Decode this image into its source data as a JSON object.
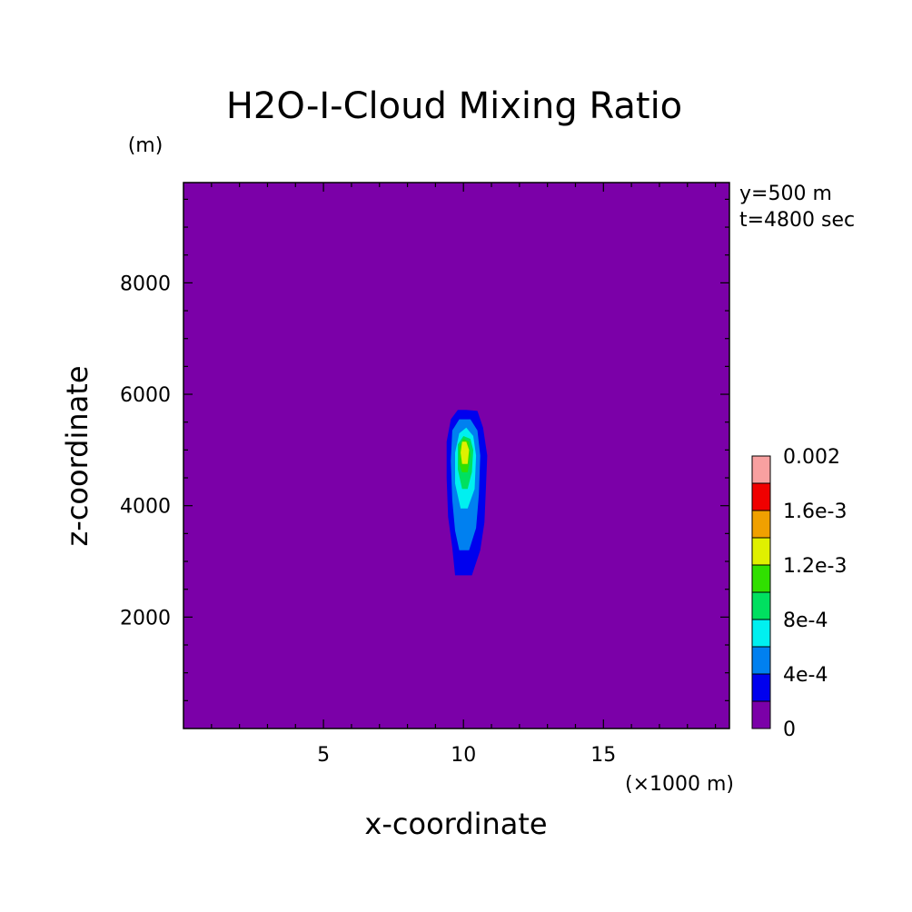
{
  "chart_data": {
    "type": "heatmap",
    "title": "H2O-I-Cloud Mixing Ratio",
    "xlabel": "x-coordinate",
    "ylabel": "z-coordinate",
    "x_unit": "(×1000 m)",
    "y_unit": "(m)",
    "annotations": [
      "y=500 m",
      "t=4800 sec"
    ],
    "xlim": [
      0,
      19.5
    ],
    "ylim": [
      0,
      9800
    ],
    "x_ticks": [
      5,
      10,
      15
    ],
    "y_ticks": [
      2000,
      4000,
      6000,
      8000
    ],
    "x_tick_labels": [
      "5",
      "10",
      "15"
    ],
    "y_tick_labels": [
      "2000",
      "4000",
      "6000",
      "8000"
    ],
    "background_color": "#7b00a8",
    "colorbar": {
      "levels": [
        0,
        0.0002,
        0.0004,
        0.0006,
        0.0008,
        0.001,
        0.0012,
        0.0014,
        0.0016,
        0.0018,
        0.002
      ],
      "colors": [
        "#7b00a8",
        "#0000ee",
        "#0080f0",
        "#00f0f0",
        "#00e060",
        "#30e000",
        "#e0f000",
        "#f0a000",
        "#f00000",
        "#f8a0a0"
      ],
      "labels": [
        {
          "value": 0,
          "text": "0"
        },
        {
          "value": 0.0004,
          "text": "4e-4"
        },
        {
          "value": 0.0008,
          "text": "8e-4"
        },
        {
          "value": 0.0012,
          "text": "1.2e-3"
        },
        {
          "value": 0.0016,
          "text": "1.6e-3"
        },
        {
          "value": 0.002,
          "text": "0.002"
        }
      ]
    },
    "contours": [
      {
        "level": 0.0002,
        "color": "#0000ee",
        "points": [
          [
            9.7,
            2750
          ],
          [
            10.3,
            2750
          ],
          [
            10.6,
            3200
          ],
          [
            10.75,
            3700
          ],
          [
            10.8,
            4300
          ],
          [
            10.85,
            4900
          ],
          [
            10.7,
            5400
          ],
          [
            10.5,
            5700
          ],
          [
            10.1,
            5720
          ],
          [
            9.8,
            5720
          ],
          [
            9.55,
            5550
          ],
          [
            9.4,
            5150
          ],
          [
            9.4,
            4500
          ],
          [
            9.45,
            3800
          ],
          [
            9.6,
            3250
          ]
        ]
      },
      {
        "level": 0.0004,
        "color": "#0080f0",
        "points": [
          [
            9.85,
            3200
          ],
          [
            10.2,
            3200
          ],
          [
            10.45,
            3600
          ],
          [
            10.55,
            4200
          ],
          [
            10.6,
            4900
          ],
          [
            10.5,
            5350
          ],
          [
            10.25,
            5550
          ],
          [
            9.85,
            5550
          ],
          [
            9.6,
            5350
          ],
          [
            9.55,
            4800
          ],
          [
            9.6,
            4100
          ],
          [
            9.7,
            3550
          ]
        ]
      },
      {
        "level": 0.0006,
        "color": "#00f0f0",
        "points": [
          [
            9.9,
            3950
          ],
          [
            10.15,
            3950
          ],
          [
            10.4,
            4300
          ],
          [
            10.45,
            4900
          ],
          [
            10.35,
            5250
          ],
          [
            10.1,
            5400
          ],
          [
            9.85,
            5300
          ],
          [
            9.7,
            4950
          ],
          [
            9.7,
            4400
          ]
        ]
      },
      {
        "level": 0.0008,
        "color": "#00e060",
        "points": [
          [
            9.95,
            4300
          ],
          [
            10.15,
            4300
          ],
          [
            10.3,
            4600
          ],
          [
            10.35,
            5000
          ],
          [
            10.25,
            5200
          ],
          [
            10.0,
            5250
          ],
          [
            9.8,
            5100
          ],
          [
            9.8,
            4650
          ]
        ]
      },
      {
        "level": 0.001,
        "color": "#30e000",
        "points": [
          [
            9.95,
            4600
          ],
          [
            10.15,
            4600
          ],
          [
            10.25,
            4900
          ],
          [
            10.2,
            5150
          ],
          [
            10.0,
            5200
          ],
          [
            9.85,
            5050
          ],
          [
            9.85,
            4750
          ]
        ]
      },
      {
        "level": 0.0012,
        "color": "#e0f000",
        "points": [
          [
            9.95,
            4750
          ],
          [
            10.15,
            4750
          ],
          [
            10.2,
            5000
          ],
          [
            10.1,
            5150
          ],
          [
            9.95,
            5150
          ],
          [
            9.9,
            4950
          ]
        ]
      }
    ]
  }
}
